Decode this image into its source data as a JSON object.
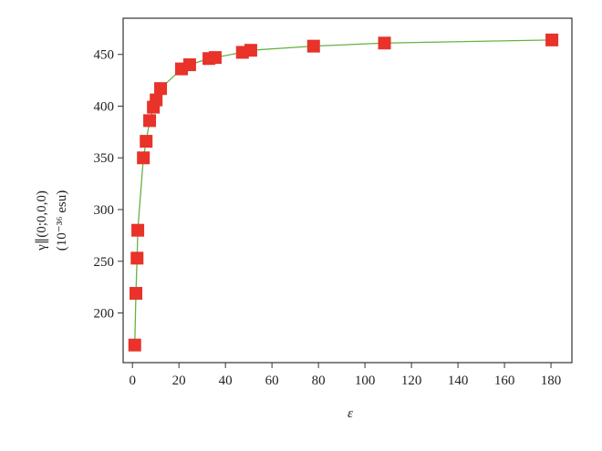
{
  "chart_data": {
    "type": "line",
    "x_label": "ε",
    "y_label": [
      "γ∥(0;0,0,0)",
      "(10⁻³⁶ esu)"
    ],
    "x": [
      1,
      1.5,
      2,
      2.3,
      4.7,
      5.9,
      7.4,
      9,
      10.2,
      12.1,
      21.1,
      24.6,
      32.9,
      35.6,
      47.3,
      50.9,
      77.9,
      108.4,
      180.4
    ],
    "series": [
      {
        "color": "#66b244",
        "marker_color": "#e8322a",
        "values": [
          169,
          219,
          253,
          280,
          350,
          366,
          386,
          399,
          406,
          417,
          436,
          440,
          446,
          447,
          452,
          454,
          458,
          461,
          464
        ]
      }
    ],
    "xlim": [
      -4,
      189
    ],
    "ylim": [
      152,
      485
    ],
    "xticks": [
      0,
      20,
      40,
      60,
      80,
      100,
      120,
      140,
      160,
      180
    ],
    "yticks": [
      200,
      250,
      300,
      350,
      400,
      450
    ]
  }
}
